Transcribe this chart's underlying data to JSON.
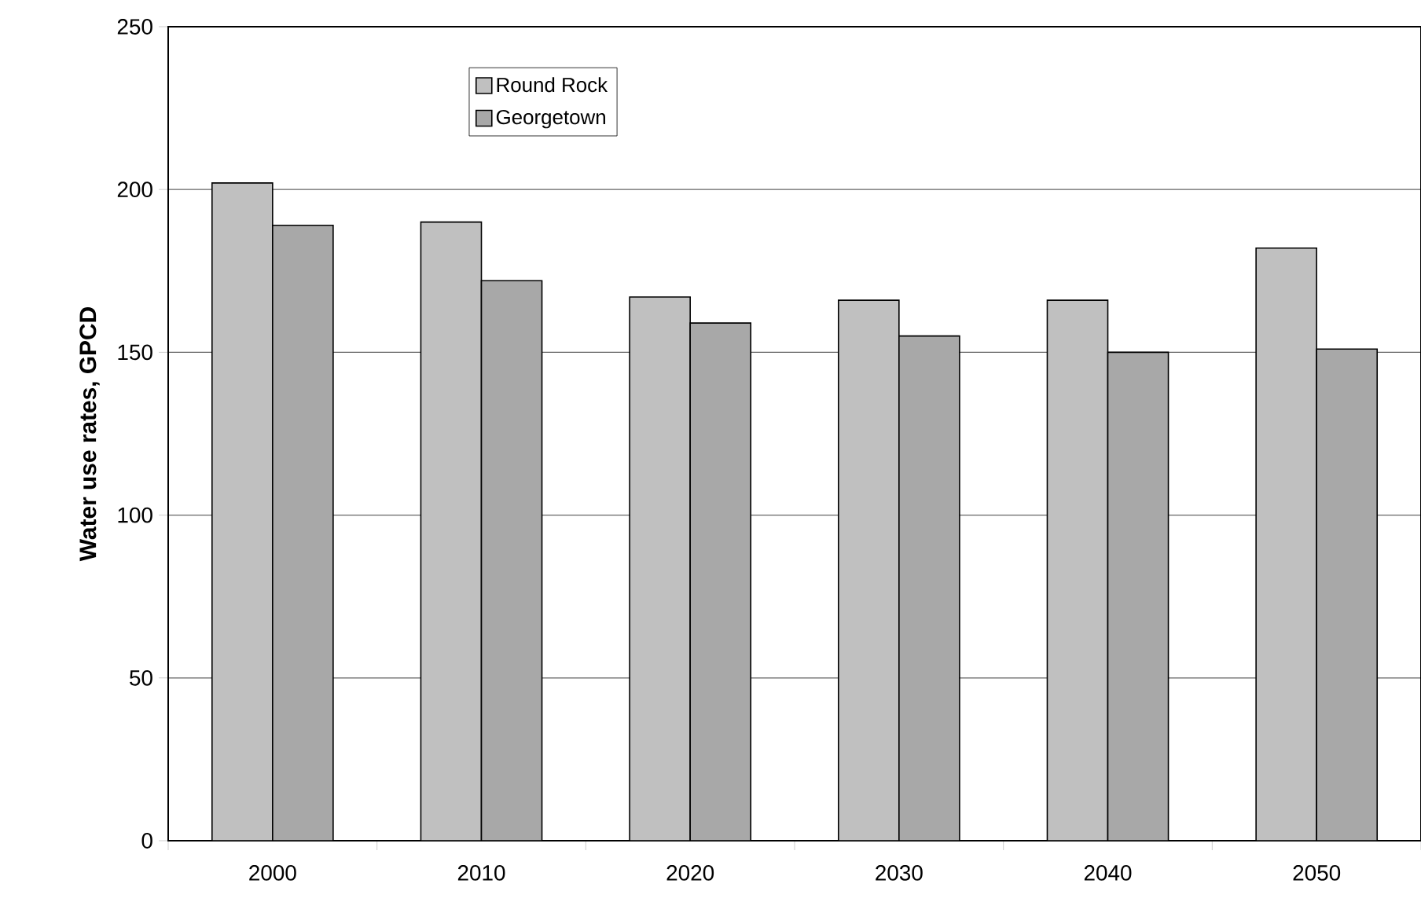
{
  "chart_data": {
    "type": "bar",
    "ylabel": "Water use rates, GPCD",
    "categories": [
      "2000",
      "2010",
      "2020",
      "2030",
      "2040",
      "2050"
    ],
    "series": [
      {
        "name": "Round Rock",
        "color": "#c0c0c0",
        "values": [
          202,
          190,
          167,
          166,
          166,
          182
        ]
      },
      {
        "name": "Georgetown",
        "color": "#a8a8a8",
        "values": [
          189,
          172,
          159,
          155,
          150,
          151
        ]
      }
    ],
    "ylim": [
      0,
      250
    ],
    "yticks": [
      0,
      50,
      100,
      150,
      200,
      250
    ],
    "grid": "y",
    "legend": "top left"
  }
}
